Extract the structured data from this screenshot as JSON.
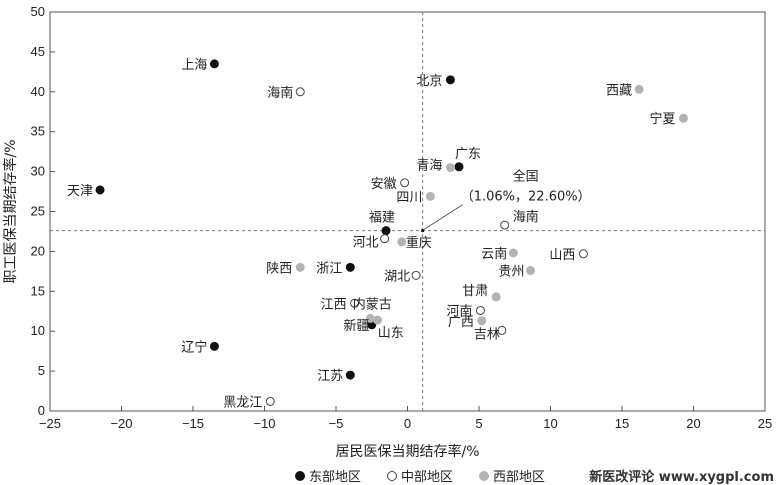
{
  "chart_data": {
    "type": "scatter",
    "xlabel": "居民医保当期结存率/%",
    "ylabel": "职工医保当期结存率/%",
    "xlim": [
      -25,
      25
    ],
    "ylim": [
      0,
      50
    ],
    "xticks": [
      -25,
      -20,
      -15,
      -10,
      -5,
      0,
      5,
      10,
      15,
      20,
      25
    ],
    "yticks": [
      0,
      5,
      10,
      15,
      20,
      25,
      30,
      35,
      40,
      45,
      50
    ],
    "xtick_labels": [
      "−25",
      "−20",
      "−15",
      "−10",
      "−5",
      "0",
      "5",
      "10",
      "15",
      "20",
      "25"
    ],
    "ytick_labels": [
      "0",
      "5",
      "10",
      "15",
      "20",
      "25",
      "30",
      "35",
      "40",
      "45",
      "50"
    ],
    "reference_lines": {
      "x": 1.06,
      "y": 22.6,
      "style": "dashed"
    },
    "national_annotation": {
      "label": "全国",
      "value_text": "（1.06%，22.60%）",
      "x": 1.06,
      "y": 22.6
    },
    "legend": {
      "placement": "bottom",
      "entries": [
        {
          "key": "east",
          "label": "东部地区"
        },
        {
          "key": "central",
          "label": "中部地区"
        },
        {
          "key": "west",
          "label": "西部地区"
        }
      ]
    },
    "styles": {
      "east": {
        "fill": "#111111",
        "stroke": "#111111"
      },
      "central": {
        "fill": "#ffffff",
        "stroke": "#444444"
      },
      "west": {
        "fill": "#b3b3b3",
        "stroke": "#b3b3b3"
      }
    },
    "series": [
      {
        "name": "东部地区",
        "key": "east",
        "points": [
          {
            "label": "上海",
            "x": -13.5,
            "y": 43.5
          },
          {
            "label": "北京",
            "x": 3.0,
            "y": 41.5
          },
          {
            "label": "天津",
            "x": -21.5,
            "y": 27.7
          },
          {
            "label": "广东",
            "x": 3.6,
            "y": 30.6
          },
          {
            "label": "福建",
            "x": -1.5,
            "y": 22.6
          },
          {
            "label": "浙江",
            "x": -4.0,
            "y": 18.0
          },
          {
            "label": "山东",
            "x": -2.5,
            "y": 10.8
          },
          {
            "label": "辽宁",
            "x": -13.5,
            "y": 8.1
          },
          {
            "label": "江苏",
            "x": -4.0,
            "y": 4.5
          }
        ]
      },
      {
        "name": "中部地区",
        "key": "central",
        "points": [
          {
            "label": "海南",
            "x": -7.5,
            "y": 40.0
          },
          {
            "label": "安徽",
            "x": -0.2,
            "y": 28.6
          },
          {
            "label": "海南",
            "x": 6.8,
            "y": 23.3
          },
          {
            "label": "河北",
            "x": -1.6,
            "y": 21.6
          },
          {
            "label": "湖北",
            "x": 0.6,
            "y": 17.0
          },
          {
            "label": "山西",
            "x": 12.3,
            "y": 19.7
          },
          {
            "label": "江西",
            "x": -3.7,
            "y": 13.5
          },
          {
            "label": "河南",
            "x": 5.1,
            "y": 12.6
          },
          {
            "label": "吉林",
            "x": 6.6,
            "y": 10.1
          },
          {
            "label": "黑龙江",
            "x": -9.6,
            "y": 1.2
          }
        ]
      },
      {
        "name": "西部地区",
        "key": "west",
        "points": [
          {
            "label": "西藏",
            "x": 16.2,
            "y": 40.3
          },
          {
            "label": "宁夏",
            "x": 19.3,
            "y": 36.7
          },
          {
            "label": "青海",
            "x": 3.0,
            "y": 30.5
          },
          {
            "label": "四川",
            "x": 1.6,
            "y": 26.9
          },
          {
            "label": "重庆",
            "x": -0.4,
            "y": 21.2
          },
          {
            "label": "陕西",
            "x": -7.5,
            "y": 18.0
          },
          {
            "label": "云南",
            "x": 7.4,
            "y": 19.8
          },
          {
            "label": "贵州",
            "x": 8.6,
            "y": 17.6
          },
          {
            "label": "甘肃",
            "x": 6.2,
            "y": 14.3
          },
          {
            "label": "内蒙古",
            "x": -2.6,
            "y": 11.6
          },
          {
            "label": "新疆",
            "x": -2.1,
            "y": 11.4
          },
          {
            "label": "广西",
            "x": 5.2,
            "y": 11.3
          }
        ]
      }
    ]
  },
  "watermark": "新医改评论 www.xygpl.com"
}
